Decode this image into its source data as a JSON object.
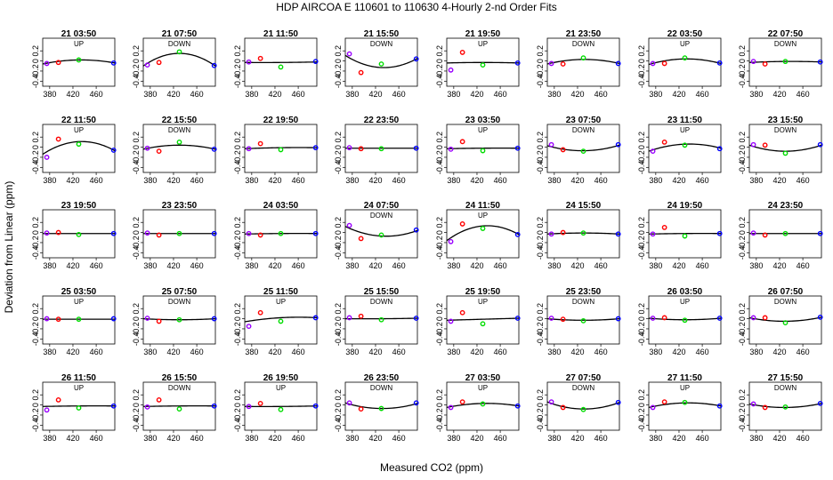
{
  "figure": {
    "title": "HDP   AIRCOA E   110601 to 110630   4-Hourly 2-nd Order Fits",
    "xlabel": "Measured CO2 (ppm)",
    "ylabel": "Deviation from Linear (ppm)"
  },
  "chart_data": {
    "type": "scatter",
    "layout": {
      "rows": 5,
      "cols": 8
    },
    "xlim": [
      368,
      492
    ],
    "ylim": [
      -0.5,
      0.45
    ],
    "xticks": [
      380,
      420,
      460
    ],
    "yticks": [
      -0.4,
      -0.2,
      0.0,
      0.2
    ],
    "ytick_labels": [
      "-0.4",
      "-0.2",
      "0",
      "0.2"
    ],
    "series_colors": {
      "p1": "#9900ff",
      "p2": "#ff0000",
      "p3": "#00dd00",
      "p4": "#0000ff",
      "fit": "#000000"
    },
    "point_x": [
      375,
      395,
      430,
      490
    ],
    "panels": [
      {
        "title": "21 03:50",
        "label": "UP",
        "y": [
          -0.05,
          -0.03,
          0.02,
          -0.04
        ],
        "fit": [
          -0.06,
          0.02,
          -0.04
        ]
      },
      {
        "title": "21 07:50",
        "label": "DOWN",
        "y": [
          -0.08,
          -0.03,
          0.18,
          -0.09
        ],
        "fit": [
          -0.1,
          0.15,
          -0.1
        ]
      },
      {
        "title": "21 11:50",
        "label": "",
        "y": [
          -0.02,
          0.05,
          -0.12,
          -0.01
        ],
        "fit": [
          -0.03,
          -0.03,
          -0.02
        ]
      },
      {
        "title": "21 15:50",
        "label": "DOWN",
        "y": [
          0.14,
          -0.23,
          -0.06,
          0.04
        ],
        "fit": [
          0.11,
          -0.13,
          0.05
        ]
      },
      {
        "title": "21 19:50",
        "label": "UP",
        "y": [
          -0.18,
          0.17,
          -0.08,
          -0.04
        ],
        "fit": [
          -0.04,
          -0.03,
          -0.04
        ]
      },
      {
        "title": "21 23:50",
        "label": "DOWN",
        "y": [
          -0.05,
          -0.06,
          0.06,
          -0.05
        ],
        "fit": [
          -0.06,
          0.03,
          -0.05
        ]
      },
      {
        "title": "22 03:50",
        "label": "UP",
        "y": [
          -0.05,
          -0.05,
          0.06,
          -0.04
        ],
        "fit": [
          -0.07,
          0.04,
          -0.05
        ]
      },
      {
        "title": "22 07:50",
        "label": "DOWN",
        "y": [
          -0.01,
          -0.06,
          -0.01,
          -0.02
        ],
        "fit": [
          -0.03,
          -0.01,
          -0.02
        ]
      },
      {
        "title": "22 11:50",
        "label": "UP",
        "y": [
          -0.2,
          0.16,
          0.06,
          -0.06
        ],
        "fit": [
          -0.14,
          0.11,
          -0.07
        ]
      },
      {
        "title": "22 15:50",
        "label": "DOWN",
        "y": [
          -0.02,
          -0.08,
          0.1,
          -0.04
        ],
        "fit": [
          -0.04,
          0.04,
          -0.04
        ]
      },
      {
        "title": "22 19:50",
        "label": "",
        "y": [
          -0.03,
          0.07,
          -0.05,
          -0.01
        ],
        "fit": [
          -0.03,
          -0.01,
          -0.01
        ]
      },
      {
        "title": "22 23:50",
        "label": "",
        "y": [
          -0.01,
          -0.03,
          -0.03,
          -0.02
        ],
        "fit": [
          -0.02,
          -0.02,
          -0.02
        ]
      },
      {
        "title": "23 03:50",
        "label": "UP",
        "y": [
          -0.04,
          0.11,
          -0.07,
          -0.02
        ],
        "fit": [
          -0.03,
          -0.02,
          -0.02
        ]
      },
      {
        "title": "23 07:50",
        "label": "DOWN",
        "y": [
          0.05,
          -0.05,
          -0.08,
          0.05
        ],
        "fit": [
          0.03,
          -0.07,
          0.04
        ]
      },
      {
        "title": "23 11:50",
        "label": "UP",
        "y": [
          -0.08,
          0.1,
          0.04,
          -0.03
        ],
        "fit": [
          -0.08,
          0.06,
          -0.02
        ]
      },
      {
        "title": "23 15:50",
        "label": "DOWN",
        "y": [
          0.05,
          0.04,
          -0.12,
          0.05
        ],
        "fit": [
          0.04,
          -0.08,
          0.04
        ]
      },
      {
        "title": "23 19:50",
        "label": "",
        "y": [
          -0.01,
          0.0,
          -0.04,
          -0.02
        ],
        "fit": [
          -0.02,
          -0.02,
          -0.02
        ]
      },
      {
        "title": "23 23:50",
        "label": "",
        "y": [
          -0.01,
          -0.05,
          -0.02,
          -0.02
        ],
        "fit": [
          -0.02,
          -0.02,
          -0.02
        ]
      },
      {
        "title": "24 03:50",
        "label": "",
        "y": [
          -0.02,
          -0.05,
          -0.02,
          -0.02
        ],
        "fit": [
          -0.03,
          -0.02,
          -0.02
        ]
      },
      {
        "title": "24 07:50",
        "label": "DOWN",
        "y": [
          0.14,
          -0.12,
          -0.05,
          0.05
        ],
        "fit": [
          0.12,
          -0.07,
          0.04
        ]
      },
      {
        "title": "24 11:50",
        "label": "UP",
        "y": [
          -0.18,
          0.17,
          0.08,
          -0.04
        ],
        "fit": [
          -0.16,
          0.13,
          -0.04
        ]
      },
      {
        "title": "24 15:50",
        "label": "",
        "y": [
          -0.03,
          0.0,
          -0.01,
          -0.03
        ],
        "fit": [
          -0.03,
          -0.01,
          -0.03
        ]
      },
      {
        "title": "24 19:50",
        "label": "",
        "y": [
          -0.03,
          0.1,
          -0.07,
          -0.02
        ],
        "fit": [
          -0.03,
          -0.02,
          -0.02
        ]
      },
      {
        "title": "24 23:50",
        "label": "",
        "y": [
          -0.01,
          -0.05,
          -0.02,
          -0.02
        ],
        "fit": [
          -0.02,
          -0.02,
          -0.02
        ]
      },
      {
        "title": "25 03:50",
        "label": "UP",
        "y": [
          0.0,
          -0.01,
          -0.01,
          0.0
        ],
        "fit": [
          -0.01,
          -0.01,
          -0.01
        ]
      },
      {
        "title": "25 07:50",
        "label": "DOWN",
        "y": [
          0.01,
          -0.05,
          -0.02,
          0.0
        ],
        "fit": [
          0.0,
          -0.02,
          0.0
        ]
      },
      {
        "title": "25 11:50",
        "label": "UP",
        "y": [
          -0.15,
          0.12,
          -0.05,
          0.02
        ],
        "fit": [
          -0.06,
          0.02,
          0.02
        ]
      },
      {
        "title": "25 15:50",
        "label": "DOWN",
        "y": [
          0.02,
          0.05,
          -0.02,
          0.01
        ],
        "fit": [
          0.0,
          0.0,
          0.01
        ]
      },
      {
        "title": "25 19:50",
        "label": "UP",
        "y": [
          -0.05,
          0.12,
          -0.1,
          0.01
        ],
        "fit": [
          -0.03,
          -0.01,
          0.01
        ]
      },
      {
        "title": "25 23:50",
        "label": "DOWN",
        "y": [
          0.01,
          -0.01,
          -0.04,
          0.0
        ],
        "fit": [
          0.0,
          -0.03,
          0.0
        ]
      },
      {
        "title": "26 03:50",
        "label": "UP",
        "y": [
          0.01,
          0.02,
          -0.03,
          0.01
        ],
        "fit": [
          0.01,
          -0.02,
          0.01
        ]
      },
      {
        "title": "26 07:50",
        "label": "DOWN",
        "y": [
          0.02,
          0.02,
          -0.08,
          0.03
        ],
        "fit": [
          0.02,
          -0.05,
          0.03
        ]
      },
      {
        "title": "26 11:50",
        "label": "UP",
        "y": [
          -0.1,
          0.1,
          -0.06,
          -0.02
        ],
        "fit": [
          -0.03,
          -0.02,
          -0.02
        ]
      },
      {
        "title": "26 15:50",
        "label": "DOWN",
        "y": [
          -0.04,
          0.1,
          -0.08,
          -0.02
        ],
        "fit": [
          -0.03,
          -0.02,
          -0.02
        ]
      },
      {
        "title": "26 19:50",
        "label": "UP",
        "y": [
          -0.03,
          0.03,
          -0.09,
          -0.02
        ],
        "fit": [
          -0.03,
          -0.03,
          -0.02
        ]
      },
      {
        "title": "26 23:50",
        "label": "DOWN",
        "y": [
          0.04,
          -0.08,
          -0.07,
          0.04
        ],
        "fit": [
          0.04,
          -0.07,
          0.03
        ]
      },
      {
        "title": "27 03:50",
        "label": "UP",
        "y": [
          -0.05,
          0.06,
          0.02,
          -0.02
        ],
        "fit": [
          -0.05,
          0.03,
          -0.02
        ]
      },
      {
        "title": "27 07:50",
        "label": "DOWN",
        "y": [
          0.06,
          -0.05,
          -0.09,
          0.05
        ],
        "fit": [
          0.06,
          -0.08,
          0.05
        ]
      },
      {
        "title": "27 11:50",
        "label": "UP",
        "y": [
          -0.05,
          0.06,
          0.05,
          -0.02
        ],
        "fit": [
          -0.05,
          0.04,
          -0.02
        ]
      },
      {
        "title": "27 15:50",
        "label": "DOWN",
        "y": [
          0.02,
          -0.05,
          -0.04,
          0.03
        ],
        "fit": [
          0.02,
          -0.05,
          0.03
        ]
      }
    ]
  }
}
